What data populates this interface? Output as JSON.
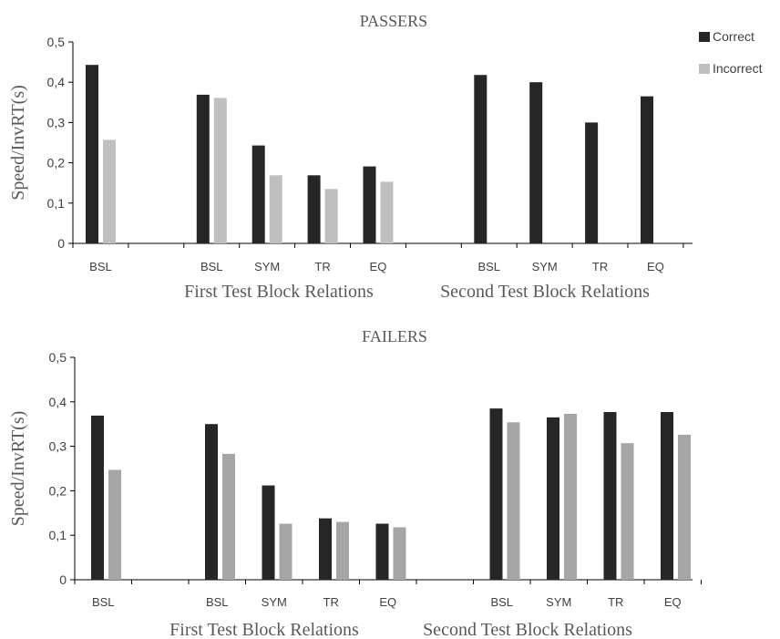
{
  "legend": {
    "items": [
      {
        "label": "Correct",
        "color": "#262626"
      },
      {
        "label": "Incorrect",
        "color": "#bfbfbf"
      }
    ]
  },
  "chart_data": [
    {
      "type": "bar",
      "title": "PASSERS",
      "ylabel": "Speed/InvRT(s)",
      "ylim": [
        0,
        0.5
      ],
      "yticks": [
        "0",
        "0,1",
        "0,2",
        "0,3",
        "0,4",
        "0,5"
      ],
      "categories": [
        "BSL",
        "",
        "BSL",
        "SYM",
        "TR",
        "EQ",
        "",
        "BSL",
        "SYM",
        "TR",
        "EQ"
      ],
      "group_labels": [
        "First Test Block Relations",
        "Second Test Block Relations"
      ],
      "series": [
        {
          "name": "Correct",
          "color": "#262626",
          "values": [
            0.443,
            null,
            0.369,
            0.243,
            0.169,
            0.191,
            null,
            0.418,
            0.4,
            0.3,
            0.365
          ]
        },
        {
          "name": "Incorrect",
          "color": "#bfbfbf",
          "values": [
            0.257,
            null,
            0.361,
            0.169,
            0.135,
            0.153,
            null,
            null,
            null,
            null,
            null
          ]
        }
      ]
    },
    {
      "type": "bar",
      "title": "FAILERS",
      "ylabel": "Speed/InvRT(s)",
      "ylim": [
        0,
        0.5
      ],
      "yticks": [
        "0",
        "0,1",
        "0,2",
        "0,3",
        "0,4",
        "0,5"
      ],
      "categories": [
        "BSL",
        "",
        "BSL",
        "SYM",
        "TR",
        "EQ",
        "",
        "BSL",
        "SYM",
        "TR",
        "EQ"
      ],
      "group_labels": [
        "First Test Block Relations",
        "Second Test Block Relations"
      ],
      "series": [
        {
          "name": "Correct",
          "color": "#262626",
          "values": [
            0.369,
            null,
            0.35,
            0.212,
            0.138,
            0.126,
            null,
            0.385,
            0.365,
            0.377,
            0.377
          ]
        },
        {
          "name": "Incorrect",
          "color": "#a6a6a6",
          "values": [
            0.247,
            null,
            0.283,
            0.126,
            0.13,
            0.118,
            null,
            0.354,
            0.373,
            0.307,
            0.326
          ]
        }
      ]
    }
  ]
}
